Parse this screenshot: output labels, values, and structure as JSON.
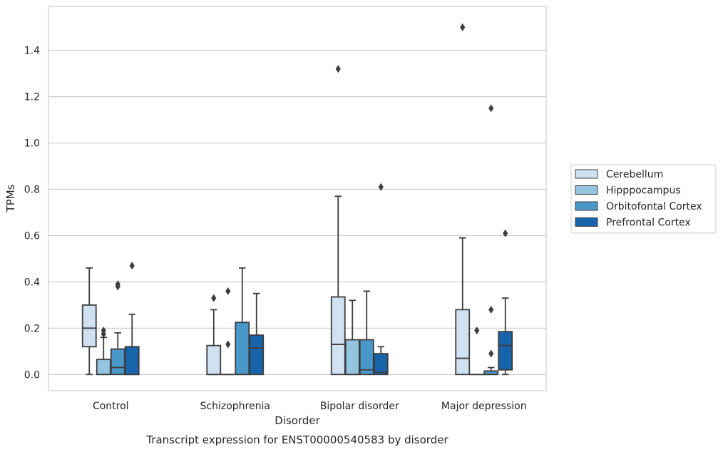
{
  "chart_data": {
    "type": "boxplot",
    "title": "",
    "caption": "Transcript expression for ENST00000540583 by disorder",
    "xlabel": "Disorder",
    "ylabel": "TPMs",
    "ylim": [
      -0.07,
      1.59
    ],
    "yticks": [
      0.0,
      0.2,
      0.4,
      0.6,
      0.8,
      1.0,
      1.2,
      1.4
    ],
    "ytick_labels": [
      "0.0",
      "0.2",
      "0.4",
      "0.6",
      "0.8",
      "1.0",
      "1.2",
      "1.4"
    ],
    "grid": "horizontal",
    "legend_position": "right",
    "categories": [
      "Control",
      "Schizophrenia",
      "Bipolar disorder",
      "Major depression"
    ],
    "series": [
      {
        "name": "Cerebellum",
        "color": "#d0e1f2",
        "boxes": [
          {
            "whislo": 0.0,
            "q1": 0.12,
            "med": 0.2,
            "q3": 0.3,
            "whishi": 0.46,
            "fliers": []
          },
          {
            "whislo": 0.0,
            "q1": 0.0,
            "med": 0.0,
            "q3": 0.125,
            "whishi": 0.28,
            "fliers": [
              0.33
            ]
          },
          {
            "whislo": 0.0,
            "q1": 0.0,
            "med": 0.13,
            "q3": 0.335,
            "whishi": 0.77,
            "fliers": [
              1.32
            ]
          },
          {
            "whislo": 0.0,
            "q1": 0.0,
            "med": 0.07,
            "q3": 0.28,
            "whishi": 0.59,
            "fliers": [
              1.5
            ]
          }
        ]
      },
      {
        "name": "Hipppocampus",
        "color": "#94c4df",
        "boxes": [
          {
            "whislo": 0.0,
            "q1": 0.0,
            "med": 0.0,
            "q3": 0.065,
            "whishi": 0.16,
            "fliers": [
              0.175,
              0.19
            ]
          },
          {
            "whislo": 0.0,
            "q1": 0.0,
            "med": 0.0,
            "q3": 0.0,
            "whishi": 0.0,
            "fliers": [
              0.13,
              0.36
            ]
          },
          {
            "whislo": 0.0,
            "q1": 0.0,
            "med": 0.0,
            "q3": 0.15,
            "whishi": 0.32,
            "fliers": []
          },
          {
            "whislo": 0.0,
            "q1": 0.0,
            "med": 0.0,
            "q3": 0.0,
            "whishi": 0.0,
            "fliers": [
              0.19
            ]
          }
        ]
      },
      {
        "name": "Orbitofontal Cortex",
        "color": "#4a98c9",
        "boxes": [
          {
            "whislo": 0.0,
            "q1": 0.0,
            "med": 0.03,
            "q3": 0.11,
            "whishi": 0.18,
            "fliers": [
              0.38,
              0.39
            ]
          },
          {
            "whislo": 0.0,
            "q1": 0.0,
            "med": 0.0,
            "q3": 0.225,
            "whishi": 0.46,
            "fliers": []
          },
          {
            "whislo": 0.0,
            "q1": 0.0,
            "med": 0.02,
            "q3": 0.15,
            "whishi": 0.36,
            "fliers": []
          },
          {
            "whislo": 0.0,
            "q1": 0.0,
            "med": 0.0,
            "q3": 0.015,
            "whishi": 0.03,
            "fliers": [
              0.09,
              0.28,
              1.15
            ]
          }
        ]
      },
      {
        "name": "Prefrontal Cortex",
        "color": "#1764ab",
        "boxes": [
          {
            "whislo": 0.0,
            "q1": 0.0,
            "med": 0.0,
            "q3": 0.12,
            "whishi": 0.26,
            "fliers": [
              0.47
            ]
          },
          {
            "whislo": 0.0,
            "q1": 0.0,
            "med": 0.115,
            "q3": 0.17,
            "whishi": 0.35,
            "fliers": []
          },
          {
            "whislo": 0.0,
            "q1": 0.0,
            "med": 0.01,
            "q3": 0.09,
            "whishi": 0.12,
            "fliers": [
              0.81
            ]
          },
          {
            "whislo": 0.0,
            "q1": 0.02,
            "med": 0.125,
            "q3": 0.185,
            "whishi": 0.33,
            "fliers": [
              0.61
            ]
          }
        ]
      }
    ]
  }
}
